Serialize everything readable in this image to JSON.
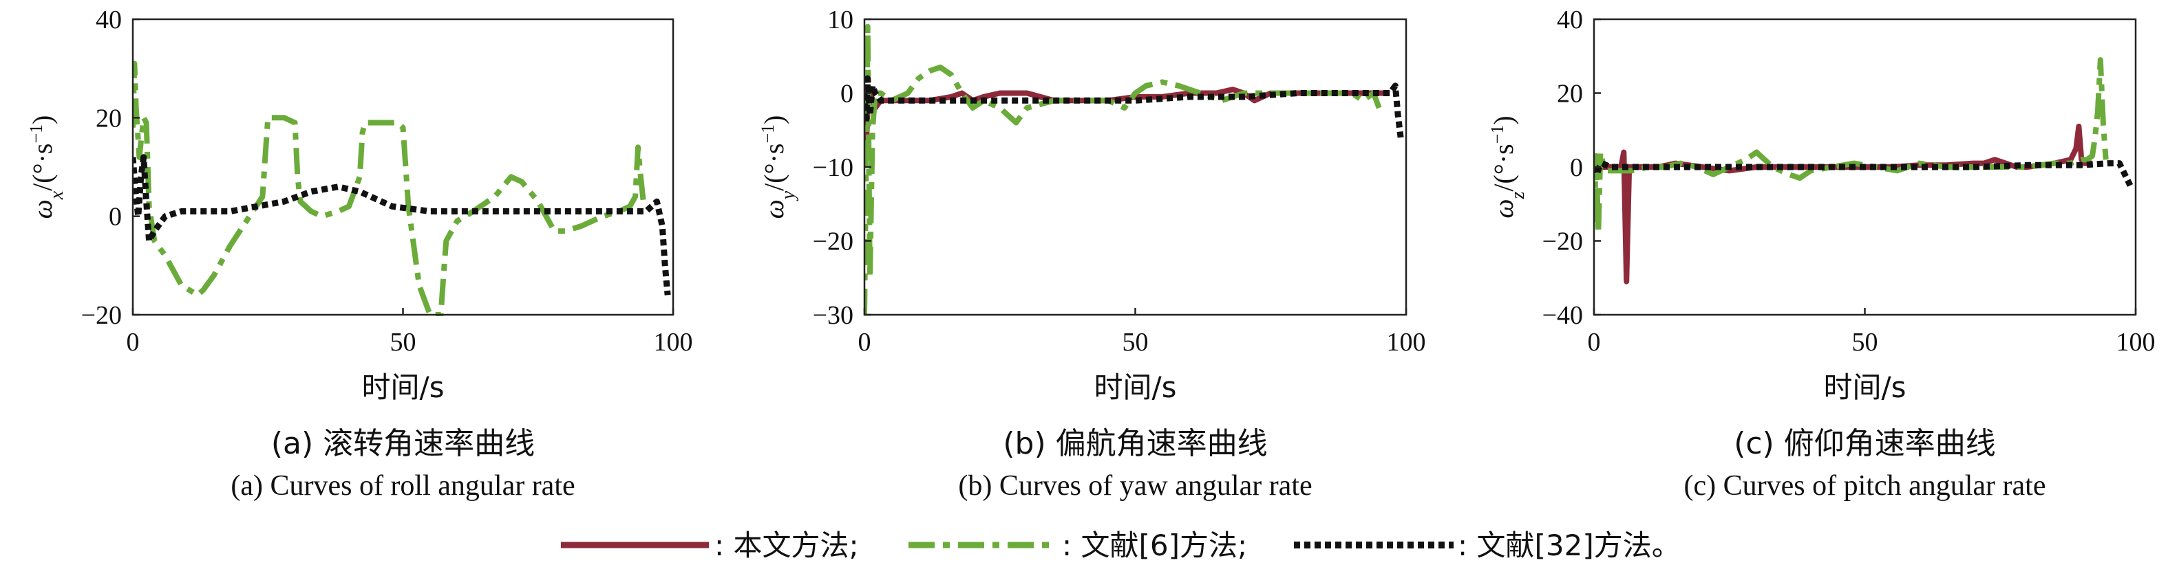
{
  "colors": {
    "method_ours": "#8e2a3a",
    "method_ref6": "#6bab3a",
    "method_ref32": "#111111"
  },
  "legend": [
    {
      "name": ": 本文方法;",
      "color": "#8e2a3a",
      "dash": "solid"
    },
    {
      "name": ": 文献[6]方法;",
      "color": "#6bab3a",
      "dash": "dashdot"
    },
    {
      "name": ": 文献[32]方法。",
      "color": "#111111",
      "dash": "dotted"
    }
  ],
  "chart_data": [
    {
      "type": "line",
      "caption_cn": "(a) 滚转角速率曲线",
      "caption_en": "(a) Curves of roll angular rate",
      "xlabel": "时间/s",
      "ylabel_var": "ω",
      "ylabel_sub": "x",
      "ylabel_unit_open": "/(°·s",
      "ylabel_unit_sup": "−1",
      "ylabel_unit_close": ")",
      "xlim": [
        0,
        100
      ],
      "ylim": [
        -20,
        40
      ],
      "xticks": [
        "0",
        "50",
        "100"
      ],
      "yticks": [
        "−20",
        "0",
        "20",
        "40"
      ],
      "series": [
        {
          "name": ": 文献[6]方法;",
          "x": [
            0,
            0.3,
            0.6,
            1.2,
            2,
            2.5,
            3,
            4,
            6,
            9,
            12,
            13,
            15,
            18,
            21,
            24,
            24.5,
            25,
            28,
            30,
            30.5,
            31,
            33,
            35,
            38,
            40,
            42,
            42.5,
            43,
            46,
            49,
            50,
            51,
            52,
            53,
            55,
            57,
            57.5,
            58,
            60,
            63,
            67,
            70,
            72,
            75,
            78,
            80,
            83,
            87,
            90,
            92,
            93,
            93.5,
            94,
            94.5,
            95
          ],
          "y": [
            18,
            31,
            22,
            12,
            20,
            19,
            2,
            -5,
            -8,
            -14,
            -16,
            -15,
            -12,
            -6,
            -1,
            4,
            12,
            20,
            20,
            19,
            8,
            3,
            1,
            0,
            1,
            2,
            8,
            17,
            19,
            19,
            19,
            18,
            2,
            -6,
            -14,
            -20,
            -20,
            -12,
            -5,
            -1,
            1,
            4,
            8,
            7,
            3,
            -3,
            -3,
            -2,
            0,
            1,
            2,
            4,
            14,
            8,
            3,
            2
          ]
        },
        {
          "name": ": 文献[32]方法。",
          "x": [
            0,
            0.5,
            1,
            1.5,
            2,
            2.5,
            3,
            4,
            6,
            9,
            13,
            18,
            23,
            28,
            33,
            38,
            42,
            48,
            55,
            62,
            70,
            80,
            90,
            95,
            96,
            97,
            98,
            98.5,
            99
          ],
          "y": [
            12,
            5,
            0,
            8,
            12,
            3,
            -5,
            -3,
            0,
            1,
            1,
            1,
            2,
            3,
            5,
            6,
            5,
            2,
            1,
            1,
            1,
            1,
            1,
            1,
            2,
            3,
            -2,
            -10,
            -16
          ]
        }
      ]
    },
    {
      "type": "line",
      "caption_cn": "(b) 偏航角速率曲线",
      "caption_en": "(b) Curves of yaw angular rate",
      "xlabel": "时间/s",
      "ylabel_var": "ω",
      "ylabel_sub": "y",
      "ylabel_unit_open": "/(°·s",
      "ylabel_unit_sup": "−1",
      "ylabel_unit_close": ")",
      "xlim": [
        0,
        100
      ],
      "ylim": [
        -30,
        10
      ],
      "xticks": [
        "0",
        "50",
        "100"
      ],
      "yticks": [
        "−30",
        "−20",
        "−10",
        "0",
        "10"
      ],
      "series": [
        {
          "name": ": 本文方法;",
          "x": [
            0,
            0.3,
            0.6,
            1,
            1.5,
            2,
            3,
            5,
            8,
            12,
            16,
            18,
            20,
            22,
            25,
            30,
            35,
            40,
            45,
            50,
            55,
            60,
            65,
            68,
            70,
            72,
            75,
            80,
            85,
            90,
            95,
            97
          ],
          "y": [
            0,
            -8,
            -2,
            0,
            -1,
            -2,
            -1,
            -1,
            -1,
            -1,
            -0.5,
            0,
            -1,
            -0.5,
            0,
            0,
            -1,
            -1,
            -1,
            -0.5,
            -0.5,
            0,
            0,
            0.5,
            0,
            -1,
            0,
            0,
            0,
            0,
            0,
            0
          ]
        },
        {
          "name": ": 文献[6]方法;",
          "x": [
            0,
            0.3,
            0.6,
            1,
            1.5,
            2,
            3,
            5,
            8,
            10,
            12,
            14,
            16,
            18,
            20,
            22,
            25,
            28,
            30,
            35,
            40,
            45,
            48,
            50,
            52,
            55,
            58,
            62,
            66,
            70,
            75,
            80,
            85,
            90,
            92,
            94,
            95
          ],
          "y": [
            -30,
            -10,
            9,
            -25,
            -5,
            0,
            0,
            -1,
            0,
            2,
            3,
            3.5,
            2.5,
            0,
            -2,
            -1,
            -2,
            -4,
            -2,
            -1,
            -1,
            -1,
            -2,
            0,
            1,
            1.5,
            1,
            0,
            -1,
            0,
            0,
            0,
            0,
            0,
            -1,
            0,
            -2
          ]
        },
        {
          "name": ": 文献[32]方法。",
          "x": [
            0,
            0.3,
            0.6,
            1,
            1.5,
            2,
            3,
            5,
            8,
            12,
            20,
            30,
            40,
            50,
            60,
            70,
            80,
            90,
            95,
            97,
            98,
            98.5,
            99
          ],
          "y": [
            0,
            -4,
            2,
            -3,
            1,
            0,
            -1,
            -1,
            -1,
            -1,
            -1,
            -1,
            -1,
            -1,
            -0.5,
            -0.5,
            0,
            0,
            0,
            0,
            1,
            -3,
            -6
          ]
        }
      ]
    },
    {
      "type": "line",
      "caption_cn": "(c) 俯仰角速率曲线",
      "caption_en": "(c) Curves of pitch angular rate",
      "xlabel": "时间/s",
      "ylabel_var": "ω",
      "ylabel_sub": "z",
      "ylabel_unit_open": "/(°·s",
      "ylabel_unit_sup": "−1",
      "ylabel_unit_close": ")",
      "xlim": [
        0,
        100
      ],
      "ylim": [
        -40,
        40
      ],
      "xticks": [
        "0",
        "50",
        "100"
      ],
      "yticks": [
        "−40",
        "−20",
        "0",
        "20",
        "40"
      ],
      "series": [
        {
          "name": ": 本文方法;",
          "x": [
            0,
            2,
            4,
            5,
            5.5,
            6,
            6.5,
            7,
            9,
            12,
            15,
            20,
            25,
            30,
            35,
            40,
            45,
            50,
            55,
            60,
            65,
            70,
            72,
            74,
            76,
            78,
            80,
            85,
            88,
            89,
            89.5,
            90,
            90.5,
            91,
            92
          ],
          "y": [
            0,
            0,
            0,
            0,
            4,
            -31,
            0,
            0,
            0,
            0,
            1,
            0,
            -1,
            0,
            0,
            0,
            0,
            0,
            0,
            0.5,
            0.5,
            1,
            1,
            2,
            1,
            0,
            0,
            1,
            2,
            5,
            11,
            2,
            1,
            1,
            1
          ]
        },
        {
          "name": ": 文献[6]方法;",
          "x": [
            0,
            0.4,
            0.8,
            1.2,
            2,
            4,
            7,
            10,
            13,
            16,
            19,
            22,
            25,
            28,
            30,
            33,
            36,
            38,
            40,
            44,
            48,
            52,
            56,
            60,
            65,
            70,
            75,
            80,
            85,
            88,
            90,
            91,
            92,
            92.5,
            93,
            93.5,
            94,
            94.5
          ],
          "y": [
            -15,
            3,
            -18,
            4,
            -1,
            -1,
            -1,
            0,
            0,
            1,
            0,
            -2,
            0,
            2,
            4,
            0,
            -2,
            -3,
            -1,
            0,
            1,
            0,
            -1,
            1,
            0,
            0,
            0,
            0,
            1,
            1,
            2,
            2,
            3,
            8,
            15,
            29,
            12,
            2
          ]
        },
        {
          "name": ": 文献[32]方法。",
          "x": [
            0,
            0.5,
            1,
            1.5,
            3,
            6,
            10,
            20,
            30,
            40,
            50,
            60,
            70,
            80,
            90,
            95,
            97,
            98,
            99
          ],
          "y": [
            0,
            -2,
            0,
            1,
            0,
            0,
            0,
            0,
            0,
            0,
            0,
            0,
            0,
            0.5,
            0.5,
            1,
            1,
            -2,
            -5
          ]
        }
      ]
    }
  ]
}
